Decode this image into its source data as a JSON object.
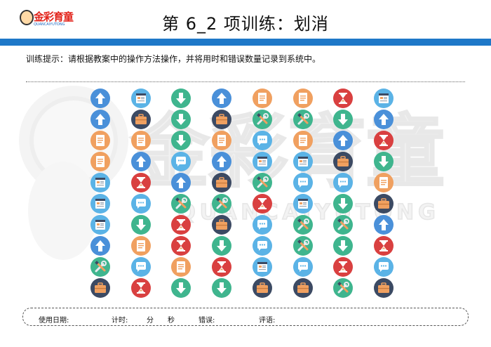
{
  "header": {
    "logo_text": "金彩育童",
    "logo_sub": "QUANCAIYUTONG",
    "title": "第 6_2 项训练：划消"
  },
  "instructions": "训练提示：请根据教案中的操作方法操作，并将用时和错误数量记录到系统中。",
  "watermark": {
    "text": "金彩育童",
    "sub": "QUANCAIYUTONG"
  },
  "colors": {
    "blue_bar": "#1e78c8",
    "arrow_up_bg": "#4a90d9",
    "arrow_down_bg": "#3fb58e",
    "document_bg": "#f0a060",
    "briefcase_bg": "#3c4a63",
    "hourglass_bg": "#d94040",
    "chat_bg": "#5bb3e6",
    "tools_bg": "#3fb58e",
    "browser_bg": "#5bb3e6"
  },
  "icon_grid": {
    "columns": 8,
    "rows": 10,
    "cells": [
      [
        "arrow-up",
        "browser",
        "arrow-down",
        "arrow-up",
        "document",
        "document",
        "hourglass",
        "browser"
      ],
      [
        "arrow-up",
        "briefcase",
        "arrow-down",
        "briefcase",
        "tools",
        "tools",
        "arrow-down",
        "arrow-up"
      ],
      [
        "document",
        "document",
        "arrow-down",
        "document",
        "chat",
        "document",
        "arrow-up",
        "hourglass"
      ],
      [
        "document",
        "arrow-up",
        "chat",
        "arrow-up",
        "browser",
        "browser",
        "briefcase",
        "arrow-down"
      ],
      [
        "browser",
        "hourglass",
        "arrow-up",
        "briefcase",
        "tools",
        "chat",
        "chat",
        "document"
      ],
      [
        "browser",
        "chat",
        "tools",
        "tools",
        "hourglass",
        "browser",
        "arrow-down",
        "briefcase"
      ],
      [
        "browser",
        "arrow-down",
        "hourglass",
        "briefcase",
        "chat",
        "tools",
        "tools",
        "arrow-up"
      ],
      [
        "arrow-up",
        "document",
        "hourglass",
        "arrow-down",
        "chat",
        "tools",
        "arrow-down",
        "hourglass"
      ],
      [
        "tools",
        "chat",
        "document",
        "hourglass",
        "browser",
        "chat",
        "hourglass",
        "chat"
      ],
      [
        "briefcase",
        "hourglass",
        "arrow-down",
        "arrow-down",
        "briefcase",
        "briefcase",
        "tools",
        "briefcase"
      ]
    ]
  },
  "footer": {
    "date_label": "使用日期:",
    "time_label": "计时:",
    "minute_label": "分",
    "second_label": "秒",
    "error_label": "错误:",
    "comment_label": "评语:"
  }
}
